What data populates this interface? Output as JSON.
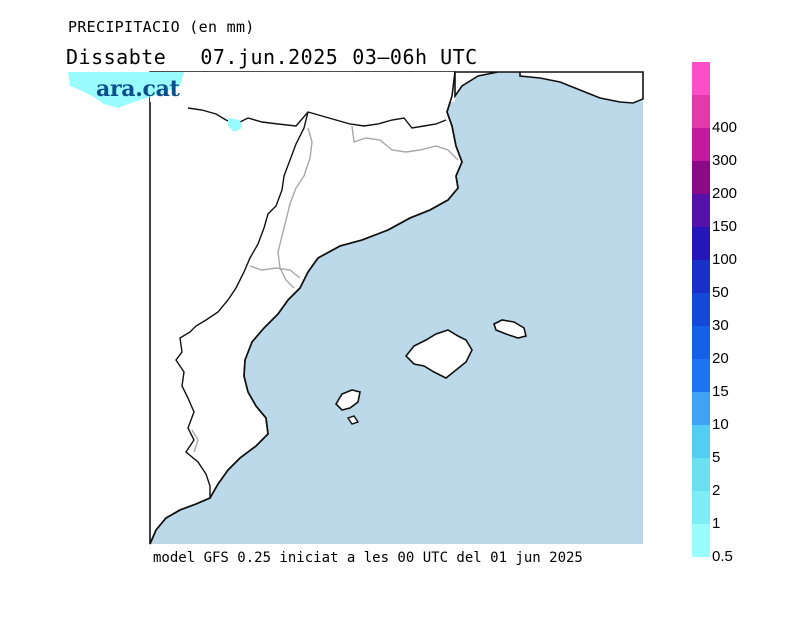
{
  "header": {
    "title": "PRECIPITACIO (en mm)",
    "day": "Dissabte",
    "date": "07.jun.2025",
    "period": "03–06h UTC"
  },
  "logo": {
    "text": "ara.cat"
  },
  "footer": {
    "text": "model GFS 0.25 iniciat a les 00 UTC del 01 jun 2025"
  },
  "legend": {
    "bins": [
      {
        "label": "0.5",
        "color": "#9afcfc"
      },
      {
        "label": "1",
        "color": "#7fedf5"
      },
      {
        "label": "2",
        "color": "#6ae0f0"
      },
      {
        "label": "5",
        "color": "#54cdf2"
      },
      {
        "label": "10",
        "color": "#3fa3f5"
      },
      {
        "label": "15",
        "color": "#1e73f2"
      },
      {
        "label": "20",
        "color": "#1460e6"
      },
      {
        "label": "30",
        "color": "#1448d6"
      },
      {
        "label": "50",
        "color": "#1830c8"
      },
      {
        "label": "100",
        "color": "#2416b8"
      },
      {
        "label": "150",
        "color": "#5512aa"
      },
      {
        "label": "200",
        "color": "#8a0a88"
      },
      {
        "label": "300",
        "color": "#c21a9c"
      },
      {
        "label": "400",
        "color": "#e23aaa"
      },
      {
        "label": "",
        "color": "#ff4fc8"
      }
    ]
  },
  "map": {
    "sea_color": "#bcd9ea",
    "land_color": "#ffffff",
    "coast_color": "#111111",
    "border_color": "#a8a8a8",
    "precip_color": "#9afcfc"
  }
}
